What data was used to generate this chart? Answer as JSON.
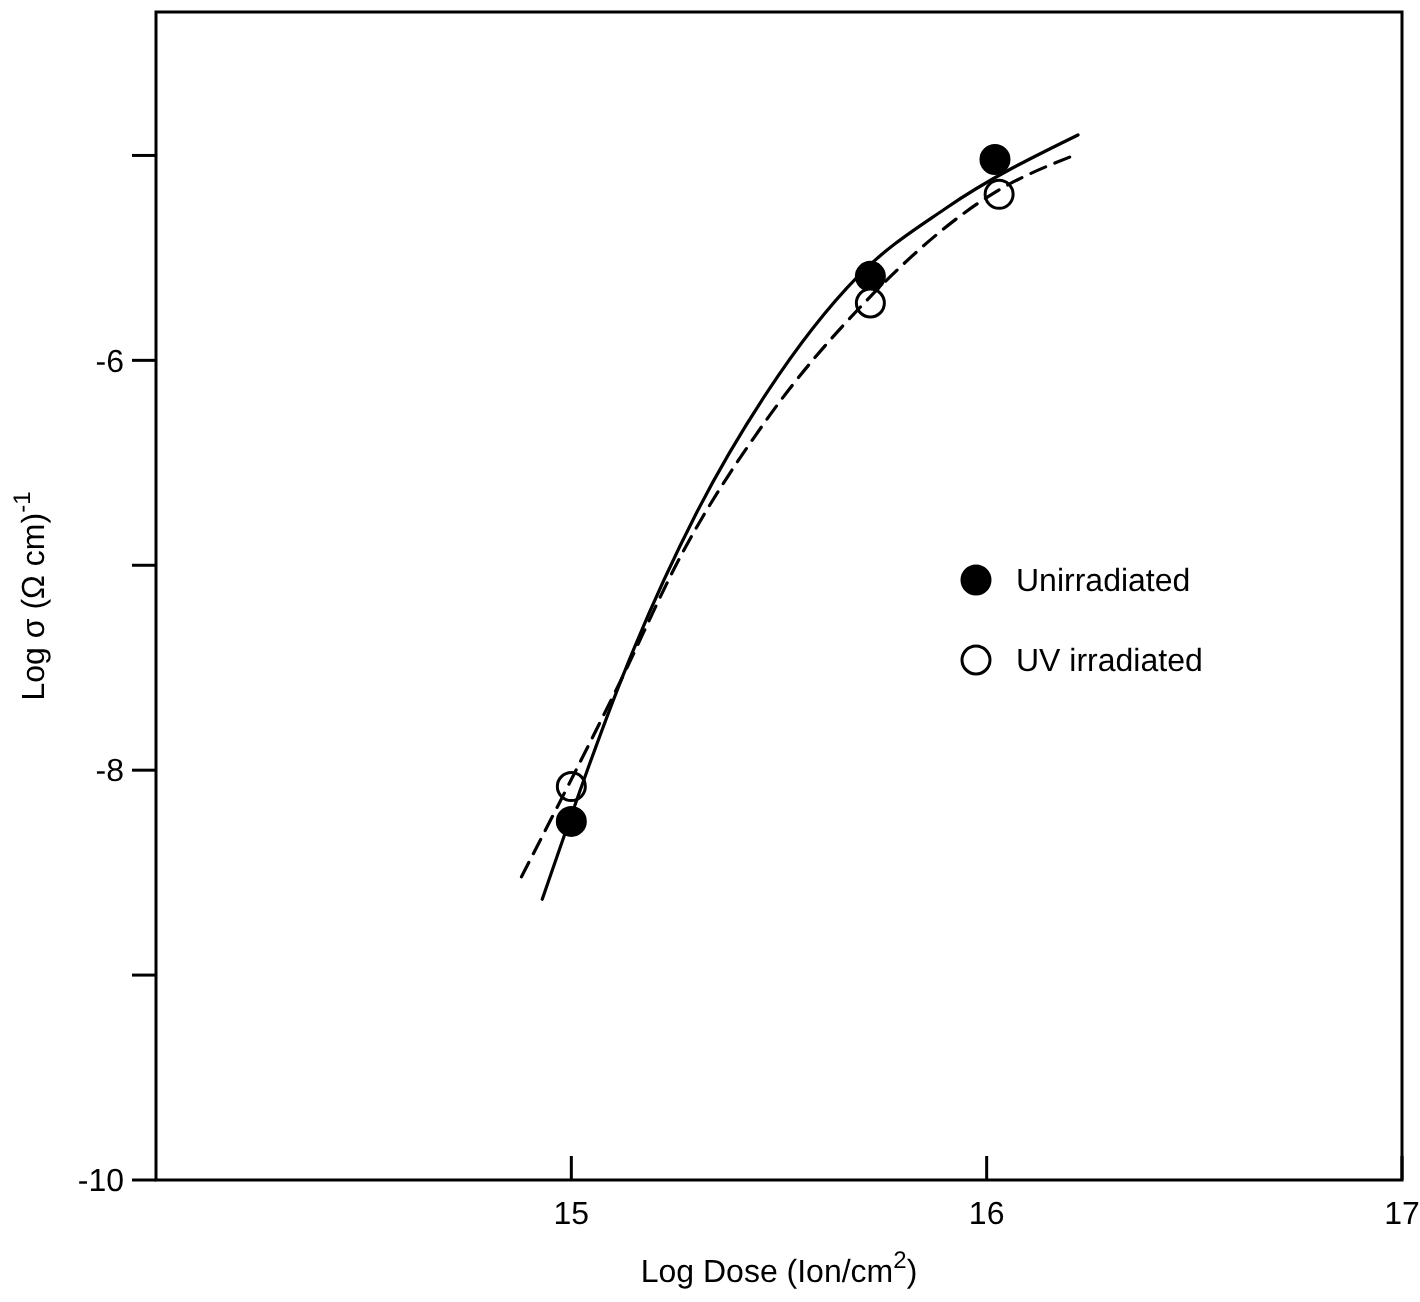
{
  "chart_data": {
    "type": "scatter",
    "xlabel": "Log Dose (Ion/cm$^{2}$)",
    "ylabel": "Log σ (Ω cm)$^{-1}$",
    "xlim": [
      14,
      17
    ],
    "ylim": [
      -10,
      -4.3
    ],
    "xticks": [
      15,
      16,
      17
    ],
    "yticks": [
      {
        "value": -5,
        "label": null
      },
      -6,
      {
        "value": -7,
        "label": null
      },
      -8,
      {
        "value": -9,
        "label": null
      },
      -10
    ],
    "grid": false,
    "legend": "right",
    "series": [
      {
        "name": "Unirradiated",
        "marker": "circle",
        "color": "#000000",
        "x": [
          15.0,
          15.72,
          16.02
        ],
        "values": [
          -8.25,
          -5.59,
          -5.02
        ]
      },
      {
        "name": "UV irradiated",
        "marker": "circle",
        "color": "#ffffff",
        "x": [
          15.0,
          15.72,
          16.03
        ],
        "values": [
          -8.08,
          -5.72,
          -5.19
        ]
      },
      {
        "type": "line",
        "marker": "none",
        "color": "#000000",
        "line_style": "solid",
        "x": [
          14.93,
          15.15,
          15.3,
          15.47,
          15.69,
          15.9,
          16.22
        ],
        "values": [
          -8.63,
          -7.41,
          -6.75,
          -6.16,
          -5.59,
          -5.26,
          -4.9
        ]
      },
      {
        "type": "line",
        "marker": "none",
        "color": "#000000",
        "line_style": "dashed",
        "x": [
          14.88,
          15.11,
          15.27,
          15.47,
          15.71,
          16.02,
          16.21
        ],
        "values": [
          -8.52,
          -7.6,
          -6.93,
          -6.29,
          -5.71,
          -5.18,
          -5.0
        ]
      }
    ]
  }
}
